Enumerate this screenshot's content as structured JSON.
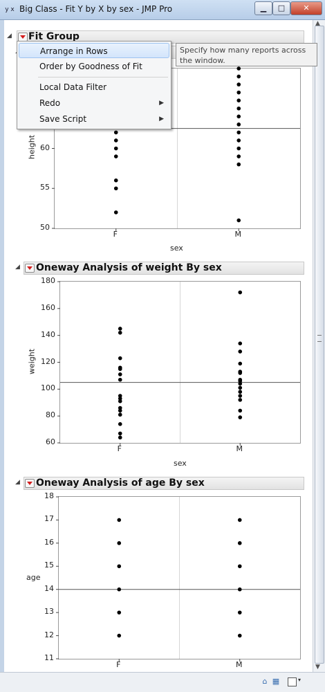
{
  "window": {
    "title": "Big Class - Fit Y by X by sex - JMP Pro",
    "app_icon_label": "y x",
    "buttons": {
      "minimize": "▁",
      "maximize": "□",
      "close": "✕"
    }
  },
  "fit_group": {
    "title": "Fit Group"
  },
  "menu": {
    "items": [
      {
        "label": "Arrange in Rows",
        "highlighted": true,
        "submenu": false
      },
      {
        "label": "Order by Goodness of Fit",
        "highlighted": false,
        "submenu": false
      },
      {
        "label": "Local Data Filter",
        "highlighted": false,
        "submenu": false
      },
      {
        "label": "Redo",
        "highlighted": false,
        "submenu": true
      },
      {
        "label": "Save Script",
        "highlighted": false,
        "submenu": true
      }
    ],
    "submenu_arrow": "▶"
  },
  "tooltip": {
    "text": "Specify how many reports across the window."
  },
  "reports": [
    {
      "title": "",
      "ylabel": "height",
      "xlabel": "sex"
    },
    {
      "title": "Oneway Analysis of weight By sex",
      "ylabel": "weight",
      "xlabel": "sex"
    },
    {
      "title": "Oneway Analysis of age By sex",
      "ylabel": "age",
      "xlabel": ""
    }
  ],
  "chart_data": [
    {
      "type": "scatter",
      "title": "",
      "xlabel": "sex",
      "ylabel": "height",
      "categories": [
        "F",
        "M"
      ],
      "ylim": [
        50,
        70
      ],
      "yticks": [
        50,
        55,
        60
      ],
      "mean_line": 62.5,
      "points": [
        {
          "x": "F",
          "y": 52
        },
        {
          "x": "F",
          "y": 55
        },
        {
          "x": "F",
          "y": 56
        },
        {
          "x": "F",
          "y": 59
        },
        {
          "x": "F",
          "y": 60
        },
        {
          "x": "F",
          "y": 61
        },
        {
          "x": "F",
          "y": 62
        },
        {
          "x": "F",
          "y": 63
        },
        {
          "x": "M",
          "y": 51
        },
        {
          "x": "M",
          "y": 58
        },
        {
          "x": "M",
          "y": 59
        },
        {
          "x": "M",
          "y": 60
        },
        {
          "x": "M",
          "y": 61
        },
        {
          "x": "M",
          "y": 62
        },
        {
          "x": "M",
          "y": 63
        },
        {
          "x": "M",
          "y": 64
        },
        {
          "x": "M",
          "y": 65
        },
        {
          "x": "M",
          "y": 66
        },
        {
          "x": "M",
          "y": 67
        },
        {
          "x": "M",
          "y": 68
        },
        {
          "x": "M",
          "y": 69
        },
        {
          "x": "M",
          "y": 70
        }
      ]
    },
    {
      "type": "scatter",
      "title": "Oneway Analysis of weight By sex",
      "xlabel": "sex",
      "ylabel": "weight",
      "categories": [
        "F",
        "M"
      ],
      "ylim": [
        60,
        180
      ],
      "yticks": [
        60,
        80,
        100,
        120,
        140,
        160,
        180
      ],
      "mean_line": 105,
      "points": [
        {
          "x": "F",
          "y": 64
        },
        {
          "x": "F",
          "y": 67
        },
        {
          "x": "F",
          "y": 74
        },
        {
          "x": "F",
          "y": 81
        },
        {
          "x": "F",
          "y": 84
        },
        {
          "x": "F",
          "y": 86
        },
        {
          "x": "F",
          "y": 91
        },
        {
          "x": "F",
          "y": 93
        },
        {
          "x": "F",
          "y": 95
        },
        {
          "x": "F",
          "y": 107
        },
        {
          "x": "F",
          "y": 111
        },
        {
          "x": "F",
          "y": 115
        },
        {
          "x": "F",
          "y": 116
        },
        {
          "x": "F",
          "y": 123
        },
        {
          "x": "F",
          "y": 142
        },
        {
          "x": "F",
          "y": 145
        },
        {
          "x": "M",
          "y": 79
        },
        {
          "x": "M",
          "y": 84
        },
        {
          "x": "M",
          "y": 92
        },
        {
          "x": "M",
          "y": 95
        },
        {
          "x": "M",
          "y": 98
        },
        {
          "x": "M",
          "y": 101
        },
        {
          "x": "M",
          "y": 104
        },
        {
          "x": "M",
          "y": 106
        },
        {
          "x": "M",
          "y": 107
        },
        {
          "x": "M",
          "y": 112
        },
        {
          "x": "M",
          "y": 113
        },
        {
          "x": "M",
          "y": 119
        },
        {
          "x": "M",
          "y": 128
        },
        {
          "x": "M",
          "y": 134
        },
        {
          "x": "M",
          "y": 172
        }
      ]
    },
    {
      "type": "scatter",
      "title": "Oneway Analysis of age By sex",
      "xlabel": "",
      "ylabel": "age",
      "categories": [
        "F",
        "M"
      ],
      "ylim": [
        11,
        18
      ],
      "yticks": [
        11,
        12,
        13,
        14,
        15,
        16,
        17,
        18
      ],
      "mean_line": 14,
      "points": [
        {
          "x": "F",
          "y": 12
        },
        {
          "x": "F",
          "y": 13
        },
        {
          "x": "F",
          "y": 14
        },
        {
          "x": "F",
          "y": 15
        },
        {
          "x": "F",
          "y": 16
        },
        {
          "x": "F",
          "y": 17
        },
        {
          "x": "M",
          "y": 12
        },
        {
          "x": "M",
          "y": 13
        },
        {
          "x": "M",
          "y": 14
        },
        {
          "x": "M",
          "y": 15
        },
        {
          "x": "M",
          "y": 16
        },
        {
          "x": "M",
          "y": 17
        }
      ]
    }
  ],
  "statusbar": {
    "home_icon": "⌂",
    "table_icon": "▦",
    "dropdown_icon": "▾"
  }
}
